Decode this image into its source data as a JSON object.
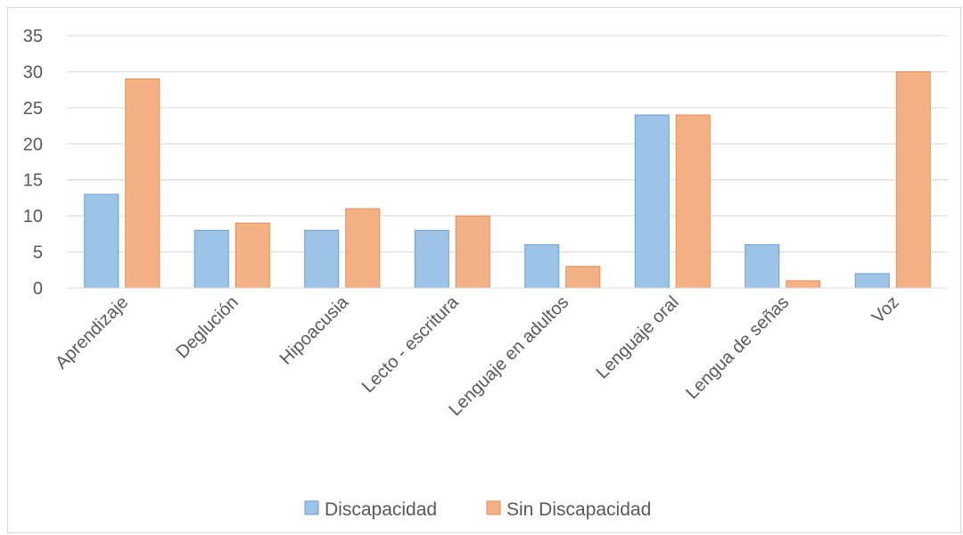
{
  "chart_data": {
    "type": "bar",
    "categories": [
      "Aprendizaje",
      "Deglución",
      "Hipoacusia",
      "Lecto - escritura",
      "Lenguaje en adultos",
      "Lenguaje oral",
      "Lengua de señas",
      "Voz"
    ],
    "series": [
      {
        "name": "Discapacidad",
        "values": [
          13,
          8,
          8,
          8,
          6,
          24,
          6,
          2
        ],
        "color": "#9dc3e6",
        "stroke": "#6a9fd0"
      },
      {
        "name": "Sin Discapacidad",
        "values": [
          29,
          9,
          11,
          10,
          3,
          24,
          1,
          30
        ],
        "color": "#f4b183",
        "stroke": "#e58c57"
      }
    ],
    "ylim": [
      0,
      35
    ],
    "yticks": [
      0,
      5,
      10,
      15,
      20,
      25,
      30,
      35
    ],
    "grid": true,
    "legend_position": "bottom"
  }
}
